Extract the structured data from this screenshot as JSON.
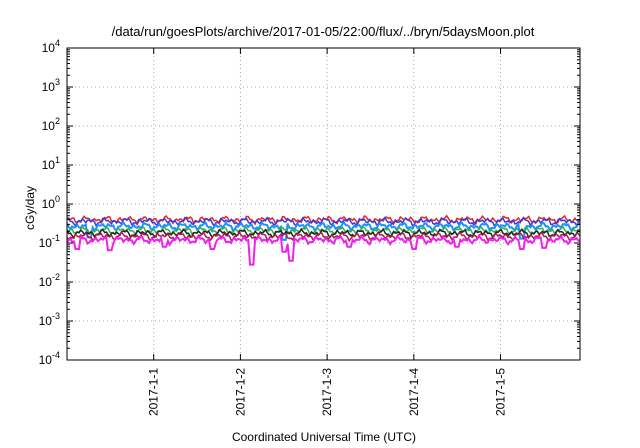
{
  "chart_data": {
    "type": "line",
    "title": "/data/run/goesPlots/archive/2017-01-05/22:00/flux/../bryn/5daysMoon.plot",
    "xlabel": "Coordinated Universal Time (UTC)",
    "ylabel": "cGy/day",
    "yscale": "log",
    "ylim": [
      0.0001,
      10000
    ],
    "y_ticks": [
      {
        "value": 0.0001,
        "base": "10",
        "exp": "-4"
      },
      {
        "value": 0.001,
        "base": "10",
        "exp": "-3"
      },
      {
        "value": 0.01,
        "base": "10",
        "exp": "-2"
      },
      {
        "value": 0.1,
        "base": "10",
        "exp": "-1"
      },
      {
        "value": 1,
        "base": "10",
        "exp": "0"
      },
      {
        "value": 10,
        "base": "10",
        "exp": "1"
      },
      {
        "value": 100,
        "base": "10",
        "exp": "2"
      },
      {
        "value": 1000,
        "base": "10",
        "exp": "3"
      },
      {
        "value": 10000,
        "base": "10",
        "exp": "4"
      }
    ],
    "xlim": [
      "2016-12-31T00:00",
      "2017-01-05T22:00"
    ],
    "x_tick_labels": [
      {
        "x": "2017-01-01T00:00",
        "label": "2017-1-1"
      },
      {
        "x": "2017-01-02T00:00",
        "label": "2017-1-2"
      },
      {
        "x": "2017-01-03T00:00",
        "label": "2017-1-3"
      },
      {
        "x": "2017-01-04T00:00",
        "label": "2017-1-4"
      },
      {
        "x": "2017-01-05T00:00",
        "label": "2017-1-5"
      }
    ],
    "grid": true,
    "legend": "none",
    "series": [
      {
        "color": "#e8242a",
        "level": 0.4,
        "dips": []
      },
      {
        "color": "#3a3ad6",
        "level": 0.36,
        "dips": []
      },
      {
        "color": "#1e90ff",
        "level": 0.27,
        "dips": [
          {
            "x": "2016-12-31T06:00",
            "y": 0.14
          },
          {
            "x": "2017-01-02T12:00",
            "y": 0.12
          },
          {
            "x": "2017-01-05T06:00",
            "y": 0.13
          }
        ]
      },
      {
        "color": "#2bb34a",
        "level": 0.21,
        "dips": []
      },
      {
        "color": "#222222",
        "level": 0.18,
        "dips": []
      },
      {
        "color": "#b0184f",
        "level": 0.15,
        "dips": []
      },
      {
        "color": "#ee22ee",
        "level": 0.12,
        "dips": [
          {
            "x": "2016-12-31T03:00",
            "y": 0.07
          },
          {
            "x": "2016-12-31T12:00",
            "y": 0.065
          },
          {
            "x": "2017-01-01T03:00",
            "y": 0.08
          },
          {
            "x": "2017-01-01T16:00",
            "y": 0.07
          },
          {
            "x": "2017-01-02T03:00",
            "y": 0.028
          },
          {
            "x": "2017-01-02T12:00",
            "y": 0.06
          },
          {
            "x": "2017-01-02T14:00",
            "y": 0.035
          },
          {
            "x": "2017-01-03T06:00",
            "y": 0.08
          },
          {
            "x": "2017-01-04T00:00",
            "y": 0.07
          },
          {
            "x": "2017-01-04T12:00",
            "y": 0.08
          },
          {
            "x": "2017-01-05T06:00",
            "y": 0.07
          },
          {
            "x": "2017-01-05T12:00",
            "y": 0.075
          }
        ]
      }
    ]
  }
}
